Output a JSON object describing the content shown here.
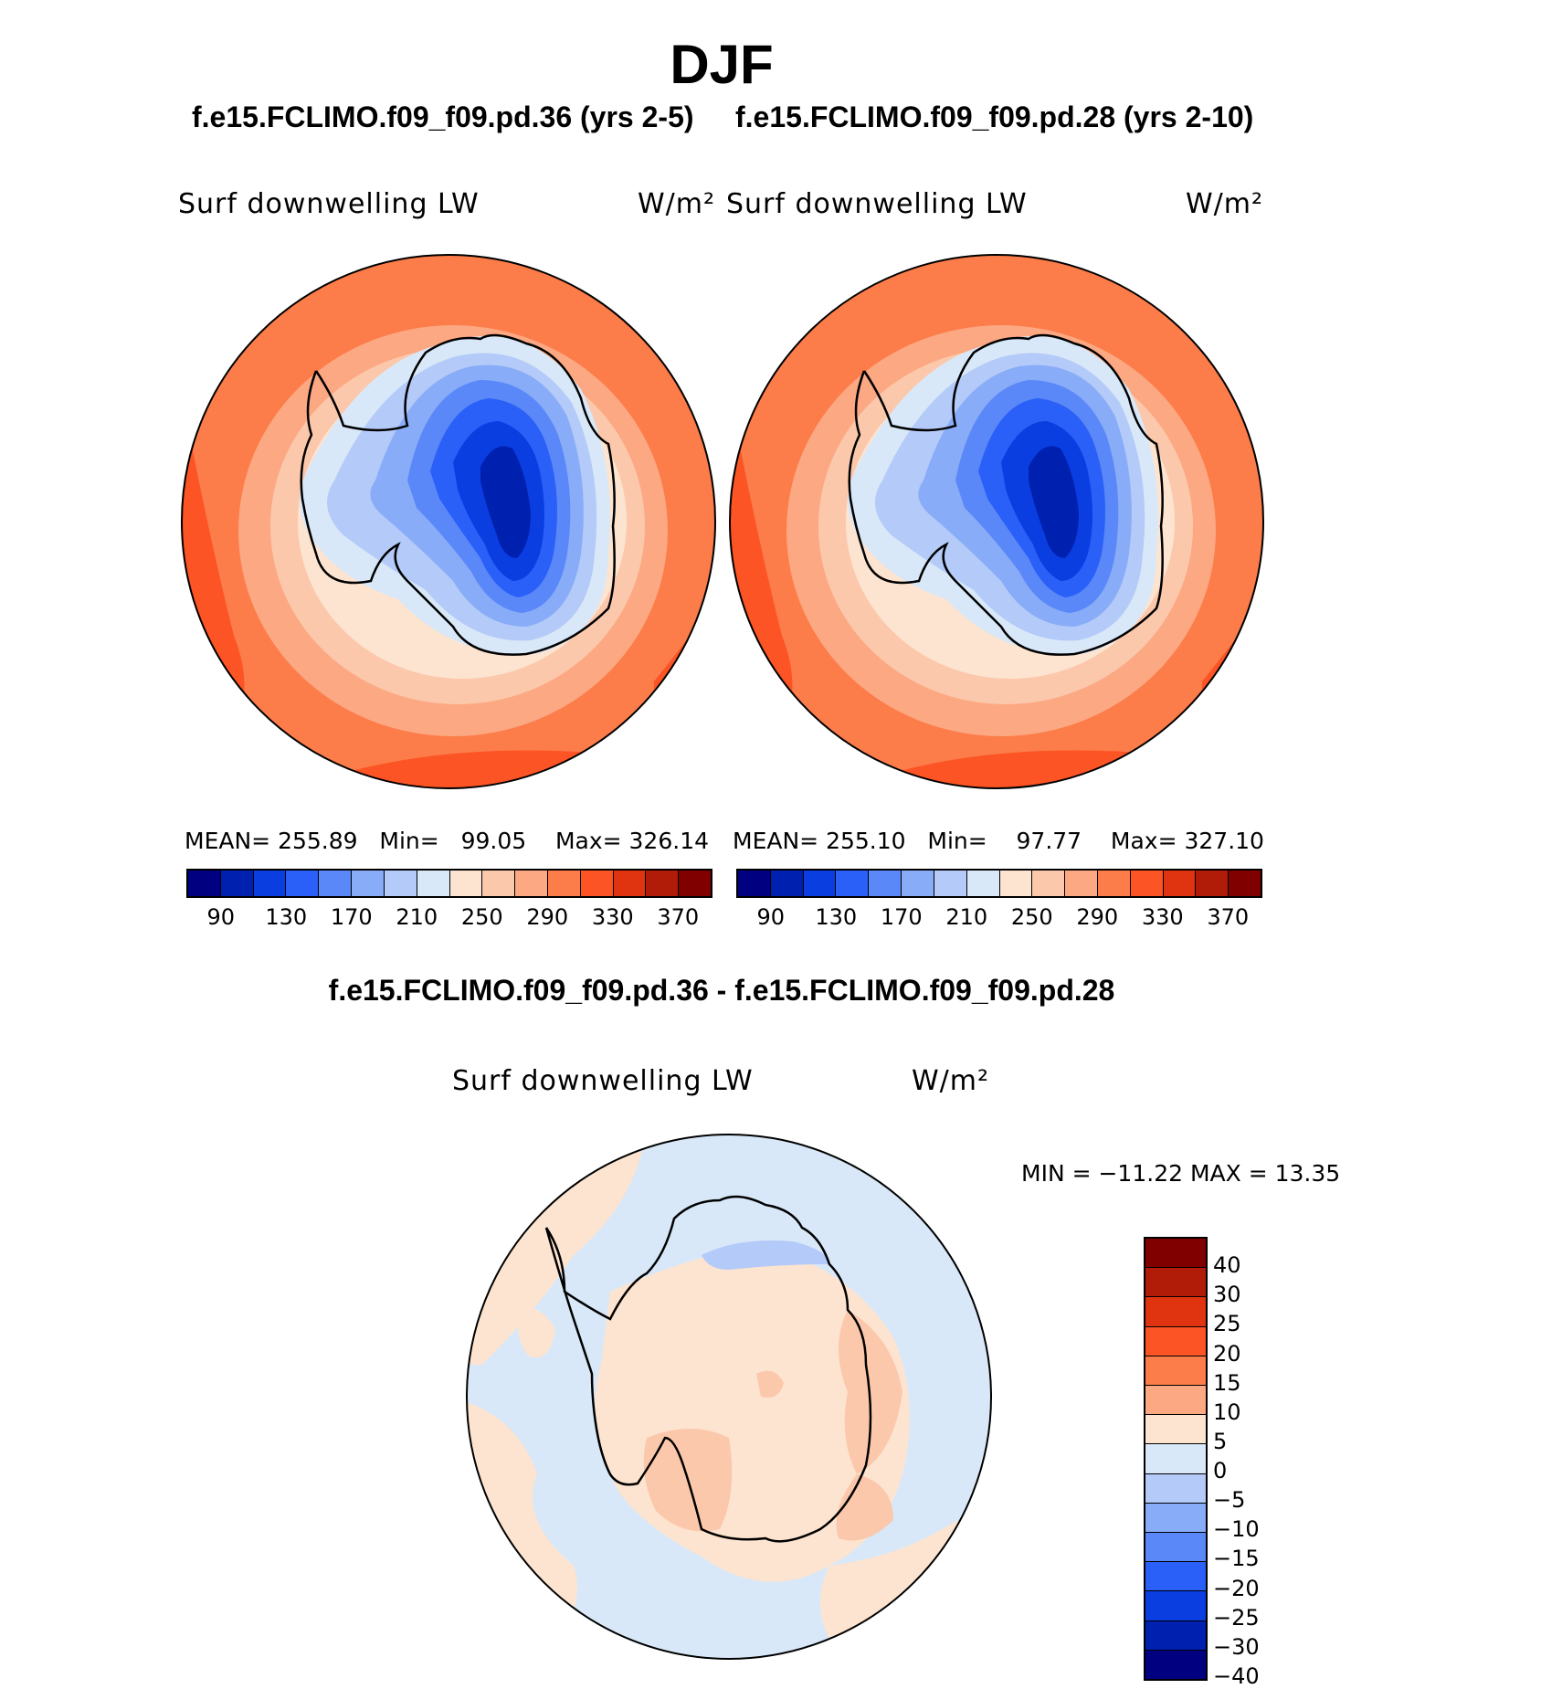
{
  "title": "DJF",
  "panels": [
    {
      "case_title": "f.e15.FCLIMO.f09_f09.pd.36 (yrs 2-5)",
      "variable_label": "Surf downwelling LW",
      "units": "W/m²",
      "stats": {
        "mean_label": "MEAN=",
        "mean": "255.89",
        "min_label": "Min=",
        "min": "99.05",
        "max_label": "Max=",
        "max": "326.14"
      }
    },
    {
      "case_title": "f.e15.FCLIMO.f09_f09.pd.28 (yrs 2-10)",
      "variable_label": "Surf downwelling LW",
      "units": "W/m²",
      "stats": {
        "mean_label": "MEAN=",
        "mean": "255.10",
        "min_label": "Min=",
        "min": "97.77",
        "max_label": "Max=",
        "max": "327.10"
      }
    }
  ],
  "colorbar_top": {
    "colors": [
      "#000080",
      "#0020b0",
      "#0a3ee0",
      "#2a60f8",
      "#5a88f8",
      "#88acf8",
      "#b4caf8",
      "#d8e8f8",
      "#fde4d0",
      "#fcc8ac",
      "#fca882",
      "#fc7c4a",
      "#fc5424",
      "#e03410",
      "#b01c08",
      "#800000"
    ],
    "tick_labels": [
      "90",
      "130",
      "170",
      "210",
      "250",
      "290",
      "330",
      "370"
    ]
  },
  "diff": {
    "title": "f.e15.FCLIMO.f09_f09.pd.36 - f.e15.FCLIMO.f09_f09.pd.28",
    "variable_label": "Surf downwelling LW",
    "units": "W/m²",
    "minmax": "MIN = −11.22 MAX =   13.35",
    "colorbar": {
      "colors_top_to_bottom": [
        "#800000",
        "#b01c08",
        "#e03410",
        "#fc5424",
        "#fc7c4a",
        "#fca882",
        "#fde4d0",
        "#d8e8f8",
        "#b4caf8",
        "#88acf8",
        "#5a88f8",
        "#2a60f8",
        "#0a3ee0",
        "#0020b0",
        "#000080"
      ],
      "tick_labels": [
        "40",
        "30",
        "25",
        "20",
        "15",
        "10",
        "5",
        "0",
        "−5",
        "−10",
        "−15",
        "−20",
        "−25",
        "−30",
        "−40"
      ]
    }
  },
  "map_colors": {
    "outer": "#fc7c4a",
    "outer_dark": "#fc5424",
    "ring3": "#fca882",
    "ring2": "#fcc8ac",
    "ring1": "#fde4d0",
    "ice1": "#d8e8f8",
    "ice2": "#b4caf8",
    "ice3": "#88acf8",
    "ice4": "#5a88f8",
    "ice5": "#2a60f8",
    "ice6": "#0a3ee0",
    "ice7": "#0020b0",
    "diff_warm": "#fde4d0",
    "diff_cool": "#d8e8f8",
    "diff_warm2": "#fcc8ac",
    "diff_cool2": "#b4caf8"
  }
}
